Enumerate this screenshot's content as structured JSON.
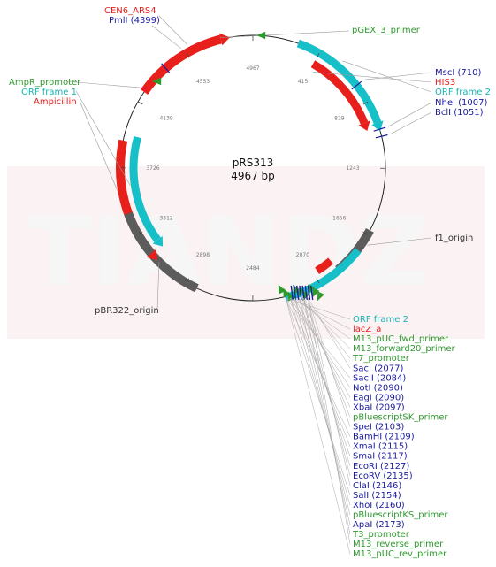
{
  "plasmid": {
    "name": "pRS313",
    "size": "4967 bp",
    "total_bp": 4967
  },
  "watermark": "TIANDZ",
  "colors": {
    "site": "#1a1aa0",
    "feature_red": "#e8201c",
    "feature_cyan": "#17c0c8",
    "feature_gray": "#5c5c5c",
    "primer": "#2e9a2e",
    "orf_label": "#19b3b3",
    "backbone": "#222222"
  },
  "ticks": [
    "415",
    "829",
    "1243",
    "1656",
    "2070",
    "2484",
    "2898",
    "3312",
    "3726",
    "4139",
    "4553",
    "4967"
  ],
  "labels": {
    "cen6": "CEN6_ARS4",
    "pmli": "PmlI (4399)",
    "pgex": "pGEX_3_primer",
    "ampr_promoter": "AmpR_promoter",
    "orf1": "ORF frame 1",
    "ampicillin": "Ampicillin",
    "msci": "MscI (710)",
    "his3": "HIS3",
    "orf2": "ORF frame 2",
    "nhei": "NheI (1007)",
    "bcli": "BclI (1051)",
    "f1": "f1_origin",
    "pbr322": "pBR322_origin"
  },
  "mcs_labels": [
    {
      "text": "ORF frame 2",
      "kind": "orf"
    },
    {
      "text": "lacZ_a",
      "kind": "feature"
    },
    {
      "text": "M13_pUC_fwd_primer",
      "kind": "primer"
    },
    {
      "text": "M13_forward20_primer",
      "kind": "primer"
    },
    {
      "text": "T7_promoter",
      "kind": "primer"
    },
    {
      "text": "SacI (2077)",
      "kind": "site"
    },
    {
      "text": "SacII (2084)",
      "kind": "site"
    },
    {
      "text": "NotI (2090)",
      "kind": "site"
    },
    {
      "text": "EagI (2090)",
      "kind": "site"
    },
    {
      "text": "XbaI (2097)",
      "kind": "site"
    },
    {
      "text": "pBluescriptSK_primer",
      "kind": "primer"
    },
    {
      "text": "SpeI (2103)",
      "kind": "site"
    },
    {
      "text": "BamHI (2109)",
      "kind": "site"
    },
    {
      "text": "XmaI (2115)",
      "kind": "site"
    },
    {
      "text": "SmaI (2117)",
      "kind": "site"
    },
    {
      "text": "EcoRI (2127)",
      "kind": "site"
    },
    {
      "text": "EcoRV (2135)",
      "kind": "site"
    },
    {
      "text": "ClaI (2146)",
      "kind": "site"
    },
    {
      "text": "SalI (2154)",
      "kind": "site"
    },
    {
      "text": "XhoI (2160)",
      "kind": "site"
    },
    {
      "text": "pBluescriptKS_primer",
      "kind": "primer"
    },
    {
      "text": "ApaI (2173)",
      "kind": "site"
    },
    {
      "text": "T3_promoter",
      "kind": "primer"
    },
    {
      "text": "M13_reverse_primer",
      "kind": "primer"
    },
    {
      "text": "M13_pUC_rev_primer",
      "kind": "primer"
    }
  ]
}
